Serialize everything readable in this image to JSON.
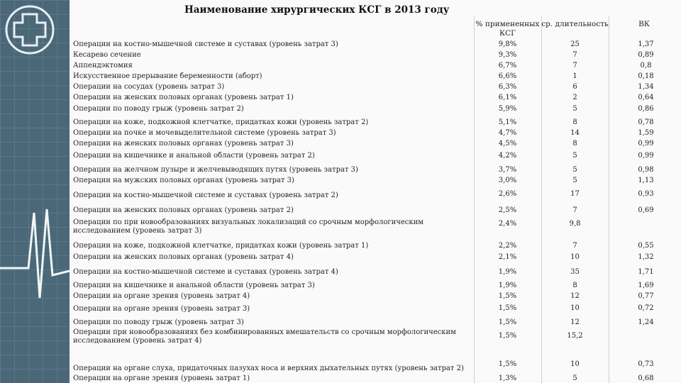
{
  "title": "Наименование хирургических КСГ в 2013 году",
  "columns": {
    "pct": "% примененных КСГ",
    "dur": "ср. длительность",
    "vk": "ВК"
  },
  "rows": [
    {
      "name": "Операции на костно-мышечной системе и суставах (уровень затрат 3)",
      "pct": "9,8%",
      "dur": "25",
      "vk": "1,37"
    },
    {
      "name": "Кесарево сечение",
      "pct": "9,3%",
      "dur": "7",
      "vk": "0,89"
    },
    {
      "name": "Аппендэктомия",
      "pct": "6,7%",
      "dur": "7",
      "vk": "0,8"
    },
    {
      "name": "Искусственное прерывание беременности (аборт)",
      "pct": "6,6%",
      "dur": "1",
      "vk": "0,18"
    },
    {
      "name": "Операции на сосудах (уровень затрат 3)",
      "pct": "6,3%",
      "dur": "6",
      "vk": "1,34"
    },
    {
      "name": "Операции на женских половых органах (уровень затрат 1)",
      "pct": "6,1%",
      "dur": "2",
      "vk": "0,64"
    },
    {
      "name": "Операции по поводу грыж (уровень затрат 2)",
      "pct": "5,9%",
      "dur": "5",
      "vk": "0,86"
    },
    {
      "name": "Операции на коже, подкожной клетчатке, придатках кожи (уровень затрат 2)",
      "pct": "5,1%",
      "dur": "8",
      "vk": "0,78"
    },
    {
      "name": "Операции на почке и мочевыделительной системе (уровень затрат 3)",
      "pct": "4,7%",
      "dur": "14",
      "vk": "1,59"
    },
    {
      "name": "Операции на женских половых органах (уровень затрат 3)",
      "pct": "4,5%",
      "dur": "8",
      "vk": "0,99"
    },
    {
      "name": "Операции на кишечнике и анальной области (уровень затрат 2)",
      "pct": "4,2%",
      "dur": "5",
      "vk": "0,99"
    },
    {
      "name": "Операции на желчном пузыре и желчевыводящих путях (уровень затрат 3)",
      "pct": "3,7%",
      "dur": "5",
      "vk": "0,98"
    },
    {
      "name": "Операции на мужских половых органах (уровень затрат 3)",
      "pct": "3,0%",
      "dur": "5",
      "vk": "1,13"
    },
    {
      "name": "Операции на костно-мышечной системе и суставах (уровень затрат 2)",
      "pct": "2,6%",
      "dur": "17",
      "vk": "0,93"
    },
    {
      "name": "Операции на женских половых органах (уровень затрат 2)",
      "pct": "2,5%",
      "dur": "7",
      "vk": "0,69"
    },
    {
      "name": "Операции по при новообразованиях визуальных локализаций со срочным морфологическим исследованием (уровень затрат 3)",
      "pct": "2,4%",
      "dur": "9,8",
      "vk": ""
    },
    {
      "name": "Операции на коже, подкожной клетчатке, придатках кожи (уровень затрат 1)",
      "pct": "2,2%",
      "dur": "7",
      "vk": "0,55"
    },
    {
      "name": "Операции на женских половых органах (уровень затрат 4)",
      "pct": "2,1%",
      "dur": "10",
      "vk": "1,32"
    },
    {
      "name": "Операции на костно-мышечной системе и суставах (уровень затрат 4)",
      "pct": "1,9%",
      "dur": "35",
      "vk": "1,71"
    },
    {
      "name": "Операции на кишечнике и анальной области (уровень затрат 3)",
      "pct": "1,9%",
      "dur": "8",
      "vk": "1,69"
    },
    {
      "name": "Операции на органе зрения (уровень затрат 4)",
      "pct": "1,5%",
      "dur": "12",
      "vk": "0,77"
    },
    {
      "name": "Операции на органе зрения (уровень затрат 3)",
      "pct": "1,5%",
      "dur": "10",
      "vk": "0,72"
    },
    {
      "name": "Операции по поводу грыж (уровень затрат 3)",
      "pct": "1,5%",
      "dur": "12",
      "vk": "1,24"
    },
    {
      "name": "Операции при новообразованиях без комбинированных вмешательств со срочным морфологическим исследованием (уровень затрат 4)",
      "pct": "1,5%",
      "dur": "15,2",
      "vk": ""
    },
    {
      "name": "Операции на органе слуха, придаточных пазухах носа и верхних дыхательных путях (уровень затрат 2)",
      "pct": "1,5%",
      "dur": "10",
      "vk": "0,73"
    },
    {
      "name": "Операции на органе зрения (уровень затрат 1)",
      "pct": "1,3%",
      "dur": "5",
      "vk": "0,68"
    }
  ]
}
